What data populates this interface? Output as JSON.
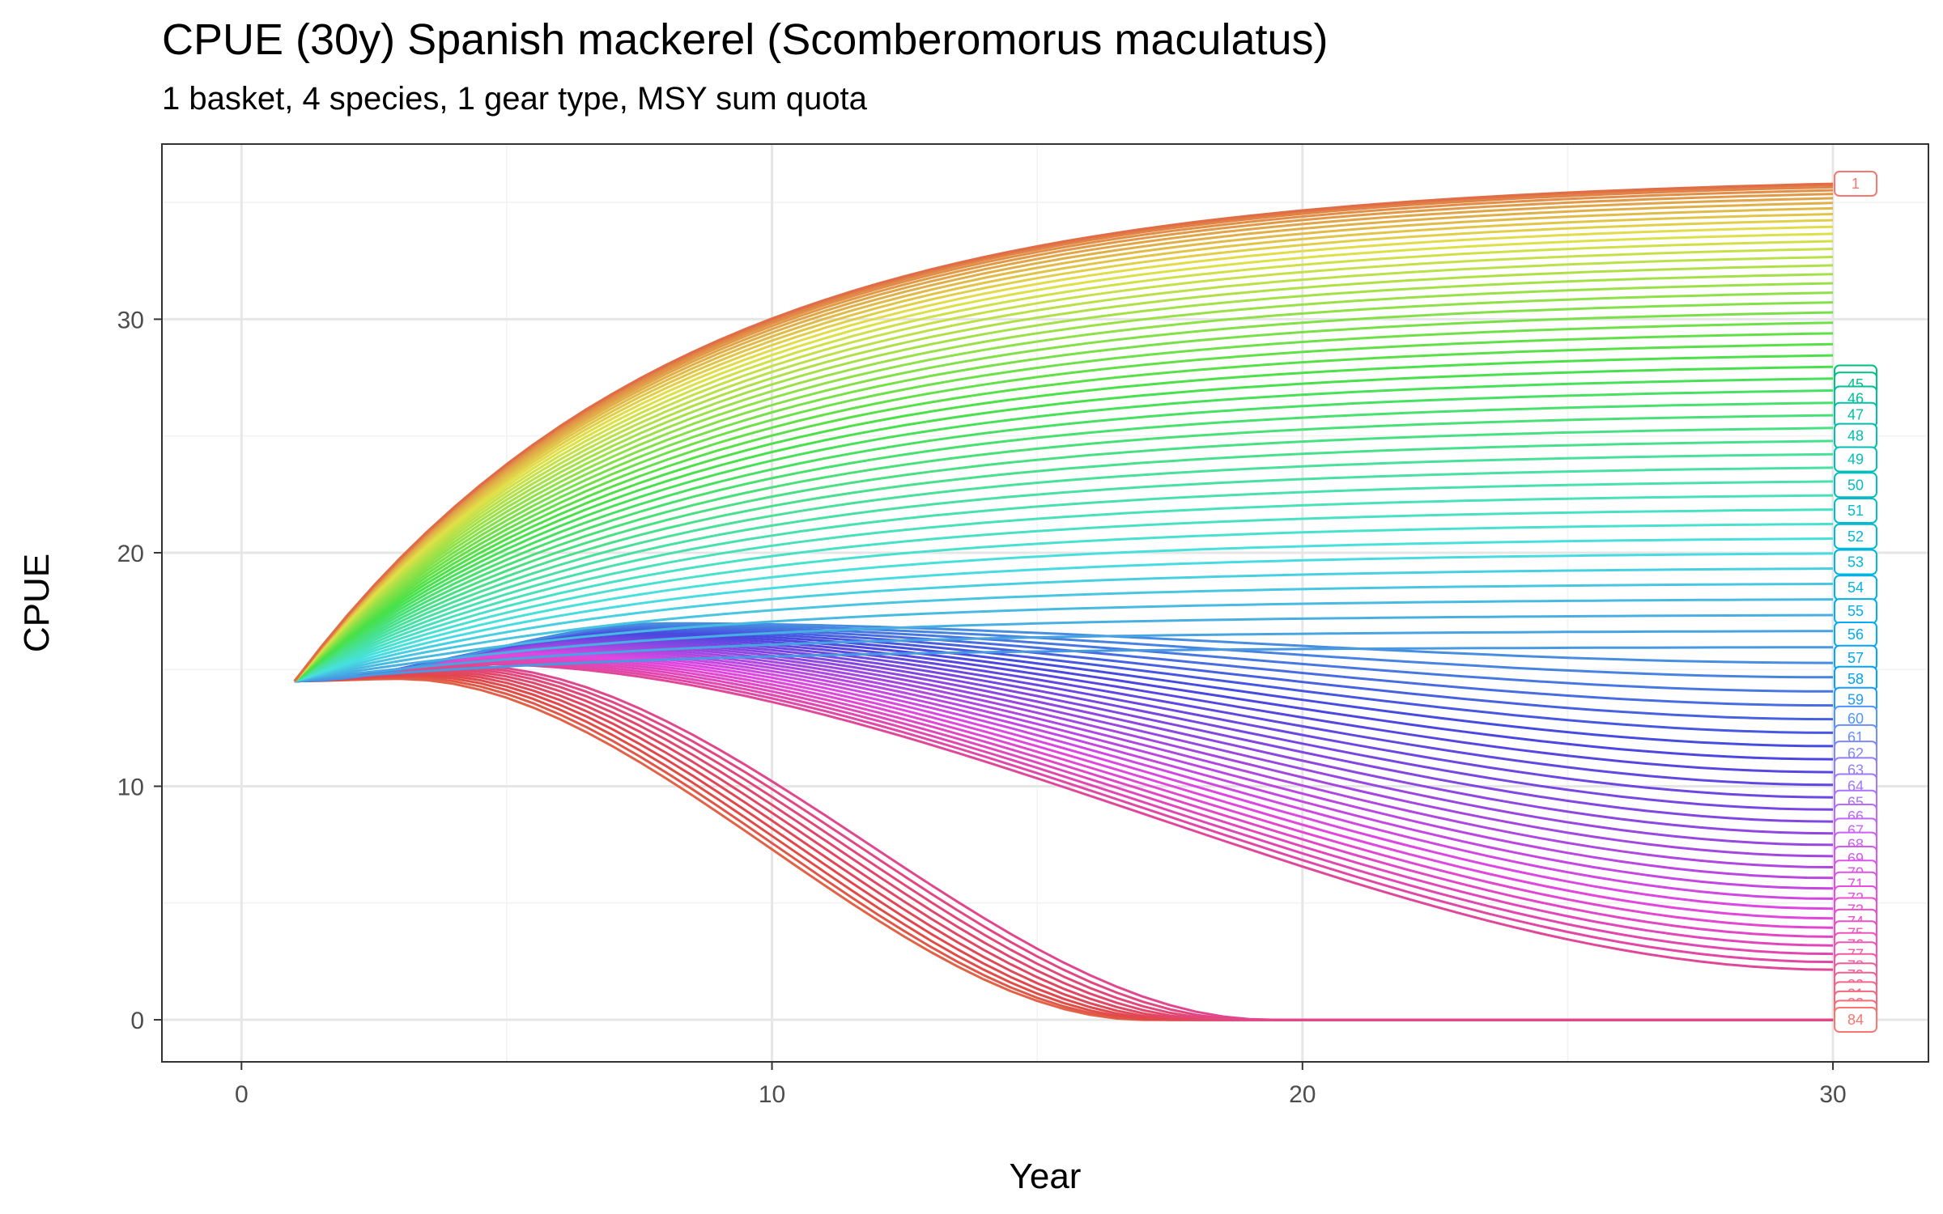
{
  "chart_data": {
    "type": "line",
    "title": "CPUE (30y) Spanish mackerel (Scomberomorus maculatus)",
    "subtitle": "1 basket, 4 species, 1 gear type, MSY sum quota",
    "xlabel": "Year",
    "ylabel": "CPUE",
    "xlim": [
      -1.5,
      31.8
    ],
    "ylim": [
      -1.8,
      37.5
    ],
    "x_ticks": [
      0,
      10,
      20,
      30
    ],
    "y_ticks": [
      0,
      10,
      20,
      30
    ],
    "x_tick_labels": [
      "0",
      "10",
      "20",
      "30"
    ],
    "y_tick_labels": [
      "0",
      "10",
      "20",
      "30"
    ],
    "grid": true,
    "legend": "none",
    "start_year": 1,
    "end_year": 30,
    "start_value": 14.5,
    "series_count": 84,
    "series_hue_order": "red → orange → green → cyan → blue → violet → magenta",
    "series": [
      {
        "name": "1",
        "final_value": 35.8,
        "color": "#F8766D"
      },
      {
        "name": "44",
        "final_value": 27.5,
        "color": "#00BF7D"
      },
      {
        "name": "45",
        "final_value": 27.2,
        "color": "#00C08B"
      },
      {
        "name": "46",
        "final_value": 26.6,
        "color": "#00C097"
      },
      {
        "name": "47",
        "final_value": 25.9,
        "color": "#00C0A3"
      },
      {
        "name": "48",
        "final_value": 25.0,
        "color": "#00BFAE"
      },
      {
        "name": "49",
        "final_value": 24.0,
        "color": "#00BFB9"
      },
      {
        "name": "50",
        "final_value": 22.9,
        "color": "#00BDC3"
      },
      {
        "name": "51",
        "final_value": 21.8,
        "color": "#00BCCD"
      },
      {
        "name": "52",
        "final_value": 20.7,
        "color": "#00B9D6"
      },
      {
        "name": "53",
        "final_value": 19.6,
        "color": "#00B6DF"
      },
      {
        "name": "54",
        "final_value": 18.5,
        "color": "#00B3E7"
      },
      {
        "name": "55",
        "final_value": 17.5,
        "color": "#00AFEE"
      },
      {
        "name": "56",
        "final_value": 16.5,
        "color": "#00ABF4"
      },
      {
        "name": "57",
        "final_value": 15.5,
        "color": "#00A6F9"
      },
      {
        "name": "58",
        "final_value": 14.6,
        "color": "#00A1FD"
      },
      {
        "name": "59",
        "final_value": 13.7,
        "color": "#1C9BFF"
      },
      {
        "name": "60",
        "final_value": 12.9,
        "color": "#4F95FF"
      },
      {
        "name": "61",
        "final_value": 12.1,
        "color": "#6A8EFF"
      },
      {
        "name": "62",
        "final_value": 11.4,
        "color": "#7F87FF"
      },
      {
        "name": "63",
        "final_value": 10.7,
        "color": "#907FFF"
      },
      {
        "name": "64",
        "final_value": 10.0,
        "color": "#9F78FF"
      },
      {
        "name": "65",
        "final_value": 9.3,
        "color": "#AD71FF"
      },
      {
        "name": "66",
        "final_value": 8.7,
        "color": "#B96AFF"
      },
      {
        "name": "67",
        "final_value": 8.1,
        "color": "#C464FF"
      },
      {
        "name": "68",
        "final_value": 7.5,
        "color": "#CD5EFA"
      },
      {
        "name": "69",
        "final_value": 6.9,
        "color": "#D558F4"
      },
      {
        "name": "70",
        "final_value": 6.3,
        "color": "#DC54ED"
      },
      {
        "name": "71",
        "final_value": 5.8,
        "color": "#E250E5"
      },
      {
        "name": "72",
        "final_value": 5.2,
        "color": "#E74EDD"
      },
      {
        "name": "73",
        "final_value": 4.7,
        "color": "#EB4DD4"
      },
      {
        "name": "74",
        "final_value": 4.2,
        "color": "#EE4DCB"
      },
      {
        "name": "75",
        "final_value": 3.7,
        "color": "#F04EC1"
      },
      {
        "name": "76",
        "final_value": 3.2,
        "color": "#F251B7"
      },
      {
        "name": "77",
        "final_value": 2.8,
        "color": "#F354AD"
      },
      {
        "name": "78",
        "final_value": 2.3,
        "color": "#F457A3"
      },
      {
        "name": "79",
        "final_value": 1.9,
        "color": "#F45B99"
      },
      {
        "name": "80",
        "final_value": 1.5,
        "color": "#F55F8F"
      },
      {
        "name": "81",
        "final_value": 1.1,
        "color": "#F56385"
      },
      {
        "name": "82",
        "final_value": 0.7,
        "color": "#F6677B"
      },
      {
        "name": "83",
        "final_value": 0.3,
        "color": "#F76B73"
      },
      {
        "name": "84",
        "final_value": 0.0,
        "color": "#F8766D"
      }
    ]
  }
}
